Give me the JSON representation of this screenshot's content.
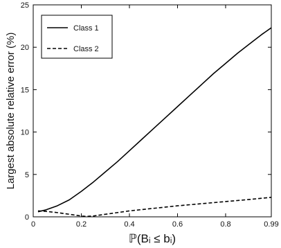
{
  "chart_data": {
    "type": "line",
    "xlabel": "ℙ(Bᵢ ≤ bᵢ)",
    "ylabel": "Largest absolute relative error (%)",
    "xlim": [
      0,
      0.99
    ],
    "ylim": [
      0,
      25
    ],
    "x_ticks": [
      "0",
      "0.2",
      "0.4",
      "0.6",
      "0.8",
      "0.99"
    ],
    "x_tick_values": [
      0,
      0.2,
      0.4,
      0.6,
      0.8,
      0.99
    ],
    "y_ticks": [
      "0",
      "5",
      "10",
      "15",
      "20",
      "25"
    ],
    "y_tick_values": [
      0,
      5,
      10,
      15,
      20,
      25
    ],
    "grid": false,
    "legend_position": "top-left",
    "series": [
      {
        "name": "Class 1",
        "style": "solid",
        "color": "#000000",
        "x": [
          0.02,
          0.05,
          0.1,
          0.15,
          0.2,
          0.25,
          0.3,
          0.35,
          0.4,
          0.45,
          0.5,
          0.55,
          0.6,
          0.65,
          0.7,
          0.75,
          0.8,
          0.85,
          0.9,
          0.95,
          0.99
        ],
        "y": [
          0.6,
          0.8,
          1.3,
          2.0,
          3.0,
          4.1,
          5.3,
          6.5,
          7.8,
          9.1,
          10.4,
          11.7,
          13.0,
          14.3,
          15.6,
          16.9,
          18.1,
          19.3,
          20.4,
          21.5,
          22.3
        ]
      },
      {
        "name": "Class 2",
        "style": "dashed",
        "color": "#000000",
        "x": [
          0.02,
          0.05,
          0.1,
          0.15,
          0.2,
          0.22,
          0.25,
          0.3,
          0.35,
          0.4,
          0.5,
          0.6,
          0.7,
          0.8,
          0.9,
          0.99
        ],
        "y": [
          0.7,
          0.65,
          0.5,
          0.3,
          0.1,
          0.05,
          0.1,
          0.3,
          0.5,
          0.7,
          1.0,
          1.3,
          1.55,
          1.8,
          2.05,
          2.3
        ]
      }
    ]
  }
}
